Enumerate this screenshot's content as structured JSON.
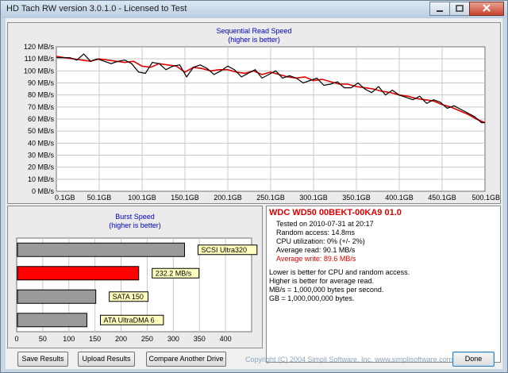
{
  "window": {
    "title": "HD Tach RW version 3.0.1.0 - Licensed to Test"
  },
  "seq_chart": {
    "title": "Sequential Read Speed",
    "subtitle": "(higher is better)"
  },
  "burst_chart": {
    "title": "Burst Speed",
    "subtitle": "(higher is better)"
  },
  "info": {
    "drive": "WDC WD50 00BEKT-00KA9 01.0",
    "tested_on": "Tested on 2010-07-31 at 20:17",
    "random_access": "Random access: 14.8ms",
    "cpu": "CPU utilization: 0% (+/- 2%)",
    "avg_read": "Average read: 90.1 MB/s",
    "avg_write": "Average write: 89.6 MB/s",
    "note1": "Lower is better for CPU and random access.",
    "note2": "Higher is better for average read.",
    "note3": "MB/s = 1,000,000 bytes per second.",
    "note4": "GB = 1,000,000,000 bytes."
  },
  "buttons": {
    "save": "Save Results",
    "upload": "Upload Results",
    "compare": "Compare Another Drive",
    "done": "Done"
  },
  "copyright": "Copyright (C) 2004 Simpli Software, Inc. www.simplisoftware.com",
  "colors": {
    "read": "#000000",
    "write": "#e00000",
    "grid": "#c8c8c8",
    "title_blue": "#0000c0",
    "bar_gray": "#9a9a9a",
    "bar_red": "#ff0000",
    "label_yellow": "#ffffc0"
  },
  "chart_data": [
    {
      "type": "line",
      "title": "Sequential Read Speed",
      "subtitle": "(higher is better)",
      "ylabel": "",
      "xlabel": "",
      "y_ticks": [
        "0 MB/s",
        "10 MB/s",
        "20 MB/s",
        "30 MB/s",
        "40 MB/s",
        "50 MB/s",
        "60 MB/s",
        "70 MB/s",
        "80 MB/s",
        "90 MB/s",
        "100 MB/s",
        "110 MB/s",
        "120 MB/s"
      ],
      "x_ticks": [
        "0.1GB",
        "50.1GB",
        "100.1GB",
        "150.1GB",
        "200.1GB",
        "250.1GB",
        "300.1GB",
        "350.1GB",
        "400.1GB",
        "450.1GB",
        "500.1GB"
      ],
      "xlim": [
        0.1,
        500.1
      ],
      "ylim": [
        0,
        120
      ],
      "grid": true,
      "series": [
        {
          "name": "read",
          "x": [
            0.1,
            8,
            16,
            24,
            32,
            40,
            48,
            56,
            64,
            72,
            80,
            88,
            96,
            104,
            112,
            120,
            128,
            136,
            144,
            152,
            160,
            168,
            176,
            184,
            192,
            200,
            208,
            216,
            224,
            232,
            240,
            248,
            256,
            264,
            272,
            280,
            288,
            296,
            304,
            312,
            320,
            328,
            336,
            344,
            352,
            360,
            368,
            376,
            384,
            392,
            400,
            408,
            416,
            424,
            432,
            440,
            448,
            456,
            464,
            472,
            480,
            488,
            496,
            500.1
          ],
          "values": [
            111,
            111,
            111,
            109,
            114,
            108,
            110,
            108,
            106,
            108,
            109,
            106,
            99,
            98,
            107,
            106,
            101,
            104,
            105,
            95,
            103,
            105,
            102,
            97,
            100,
            104,
            101,
            95,
            98,
            101,
            94,
            97,
            100,
            94,
            96,
            94,
            90,
            92,
            94,
            88,
            89,
            91,
            86,
            86,
            90,
            85,
            82,
            87,
            80,
            84,
            80,
            78,
            76,
            79,
            73,
            76,
            74,
            69,
            71,
            68,
            65,
            62,
            57,
            57
          ]
        },
        {
          "name": "write",
          "x": [
            0.1,
            10,
            20,
            30,
            40,
            50,
            60,
            70,
            80,
            90,
            100,
            110,
            120,
            130,
            140,
            150,
            160,
            170,
            180,
            190,
            200,
            210,
            220,
            230,
            240,
            250,
            260,
            270,
            280,
            290,
            300,
            310,
            320,
            330,
            340,
            350,
            360,
            370,
            380,
            390,
            400,
            410,
            420,
            430,
            440,
            450,
            460,
            470,
            480,
            490,
            500.1
          ],
          "values": [
            112,
            111,
            110,
            109,
            108,
            110,
            109,
            108,
            107,
            108,
            104,
            103,
            106,
            105,
            104,
            99,
            103,
            102,
            100,
            101,
            101,
            99,
            98,
            100,
            97,
            99,
            97,
            95,
            94,
            95,
            92,
            93,
            91,
            89,
            89,
            87,
            86,
            85,
            83,
            82,
            80,
            79,
            77,
            76,
            75,
            72,
            70,
            67,
            64,
            60,
            57
          ]
        }
      ]
    },
    {
      "type": "bar",
      "orientation": "horizontal",
      "title": "Burst Speed",
      "subtitle": "(higher is better)",
      "x_ticks": [
        "0",
        "50",
        "100",
        "150",
        "200",
        "250",
        "300",
        "350",
        "400"
      ],
      "xlim": [
        0,
        450
      ],
      "grid": true,
      "categories": [
        "SCSI Ultra320",
        "232.2 MB/s",
        "SATA 150",
        "ATA UltraDMA 6"
      ],
      "values": [
        320,
        232.2,
        150,
        133
      ],
      "bar_colors": [
        "#9a9a9a",
        "#ff0000",
        "#9a9a9a",
        "#9a9a9a"
      ]
    }
  ]
}
